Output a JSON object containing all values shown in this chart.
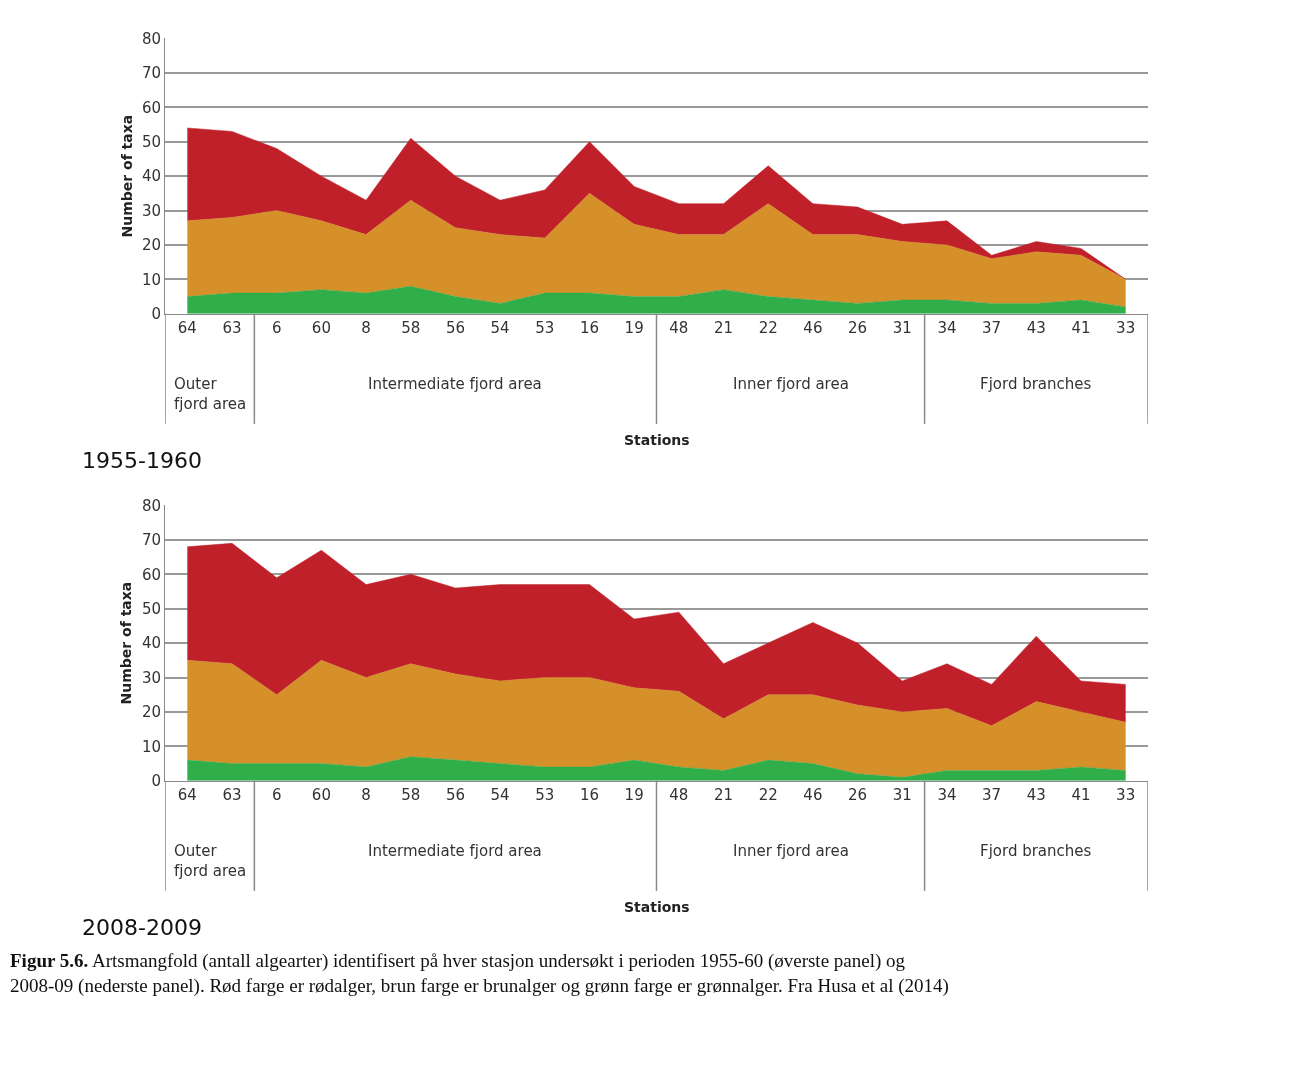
{
  "chart_data": [
    {
      "type": "area",
      "title": "1955-1960",
      "xlabel": "Stations",
      "ylabel": "Number of taxa",
      "stacked": true,
      "grid": "y",
      "categories": [
        "64",
        "63",
        "6",
        "60",
        "8",
        "58",
        "56",
        "54",
        "53",
        "16",
        "19",
        "48",
        "21",
        "22",
        "46",
        "26",
        "31",
        "34",
        "37",
        "43",
        "41",
        "33"
      ],
      "ylim": [
        0,
        80
      ],
      "yticks": [
        0,
        10,
        20,
        30,
        40,
        50,
        60,
        70,
        80
      ],
      "series": [
        {
          "color": "#2fae4a",
          "values": [
            5,
            6,
            6,
            7,
            6,
            8,
            5,
            3,
            6,
            6,
            5,
            5,
            7,
            5,
            4,
            3,
            4,
            4,
            3,
            3,
            4,
            2
          ]
        },
        {
          "color": "#d6902a",
          "values": [
            22,
            22,
            24,
            20,
            17,
            25,
            20,
            20,
            16,
            29,
            21,
            18,
            16,
            27,
            19,
            20,
            17,
            16,
            13,
            15,
            13,
            8
          ]
        },
        {
          "color": "#c0202a",
          "values": [
            27,
            25,
            18,
            13,
            10,
            18,
            15,
            10,
            14,
            15,
            11,
            9,
            9,
            11,
            9,
            8,
            5,
            7,
            1,
            3,
            2,
            0
          ]
        }
      ],
      "annotations": [
        "Outer fjord area",
        "Intermediate fjord area",
        "Inner fjord area",
        "Fjord branches"
      ]
    },
    {
      "type": "area",
      "title": "2008-2009",
      "xlabel": "Stations",
      "ylabel": "Number of taxa",
      "stacked": true,
      "grid": "y",
      "categories": [
        "64",
        "63",
        "6",
        "60",
        "8",
        "58",
        "56",
        "54",
        "53",
        "16",
        "19",
        "48",
        "21",
        "22",
        "46",
        "26",
        "31",
        "34",
        "37",
        "43",
        "41",
        "33"
      ],
      "ylim": [
        0,
        80
      ],
      "yticks": [
        0,
        10,
        20,
        30,
        40,
        50,
        60,
        70,
        80
      ],
      "series": [
        {
          "color": "#2fae4a",
          "values": [
            6,
            5,
            5,
            5,
            4,
            7,
            6,
            5,
            4,
            4,
            6,
            4,
            3,
            6,
            5,
            2,
            1,
            3,
            3,
            3,
            4,
            3
          ]
        },
        {
          "color": "#d6902a",
          "values": [
            29,
            29,
            20,
            30,
            26,
            27,
            25,
            24,
            26,
            26,
            21,
            22,
            15,
            19,
            20,
            20,
            19,
            18,
            13,
            20,
            16,
            14
          ]
        },
        {
          "color": "#c0202a",
          "values": [
            33,
            35,
            34,
            32,
            27,
            26,
            25,
            28,
            27,
            27,
            20,
            23,
            16,
            15,
            21,
            18,
            9,
            13,
            12,
            19,
            9,
            11
          ]
        }
      ],
      "annotations": [
        "Outer fjord area",
        "Intermediate fjord area",
        "Inner fjord area",
        "Fjord branches",
        "Figur 5.6. Artsmangfold (antall algearter) identifisert på hver stasjon undersøkt i perioden 1955-60 (øverste panel) og 2008-09 (nederste panel). Rød farge er rødalger, brun farge er brunalger og grønn farge er grønnalger. Fra Husa et al (2014)"
      ]
    }
  ]
}
